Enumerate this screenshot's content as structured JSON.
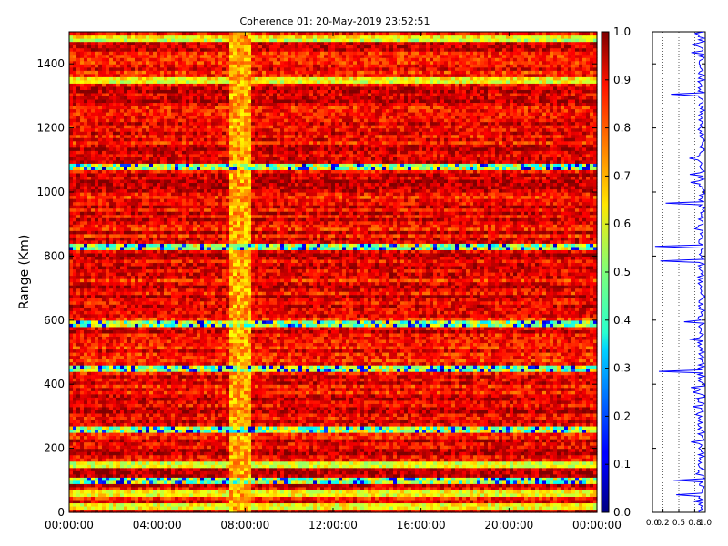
{
  "chart_data": [
    {
      "type": "heatmap",
      "title": "Coherence 01: 20-May-2019 23:52:51",
      "xlabel": "",
      "ylabel": "Range (Km)",
      "x_ticks": [
        "00:00:00",
        "04:00:00",
        "08:00:00",
        "12:00:00",
        "16:00:00",
        "20:00:00",
        "00:00:00"
      ],
      "x_range_hours": [
        0,
        24
      ],
      "y_ticks": [
        0,
        200,
        400,
        600,
        800,
        1000,
        1200,
        1400
      ],
      "ylim": [
        0,
        1500
      ],
      "colorbar": {
        "ticks": [
          "0.0",
          "0.1",
          "0.2",
          "0.3",
          "0.4",
          "0.5",
          "0.6",
          "0.7",
          "0.8",
          "0.9",
          "1.0"
        ],
        "range": [
          0,
          1
        ],
        "colormap": "jet"
      },
      "features": {
        "vertical_low_band_hours": [
          7.3,
          8.3
        ],
        "low_coherence_rows_km": [
          20,
          60,
          100,
          150,
          260,
          450,
          590,
          830,
          1080,
          1350,
          1480
        ],
        "very_low_rows_km": [
          100,
          260,
          450,
          590,
          830,
          1080
        ]
      }
    },
    {
      "type": "line",
      "title": "",
      "x_ticks": [
        "0.0",
        "0.2",
        "0.5",
        "0.8",
        "1.0"
      ],
      "xlim": [
        0,
        1
      ],
      "ylim": [
        0,
        1500
      ],
      "grid": "vertical dotted at 0.2, 0.5, 0.8",
      "line_color": "#0000ff",
      "profile": "mostly near 0.85–1.0, sharp dips to lower coherence at about 800, 780, 440, 650, 1300, 100 km",
      "dips": [
        {
          "range_km": 830,
          "value": 0.05
        },
        {
          "range_km": 785,
          "value": 0.15
        },
        {
          "range_km": 440,
          "value": 0.12
        },
        {
          "range_km": 1305,
          "value": 0.35
        },
        {
          "range_km": 965,
          "value": 0.25
        },
        {
          "range_km": 100,
          "value": 0.4
        },
        {
          "range_km": 55,
          "value": 0.45
        },
        {
          "range_km": 595,
          "value": 0.6
        }
      ]
    }
  ]
}
